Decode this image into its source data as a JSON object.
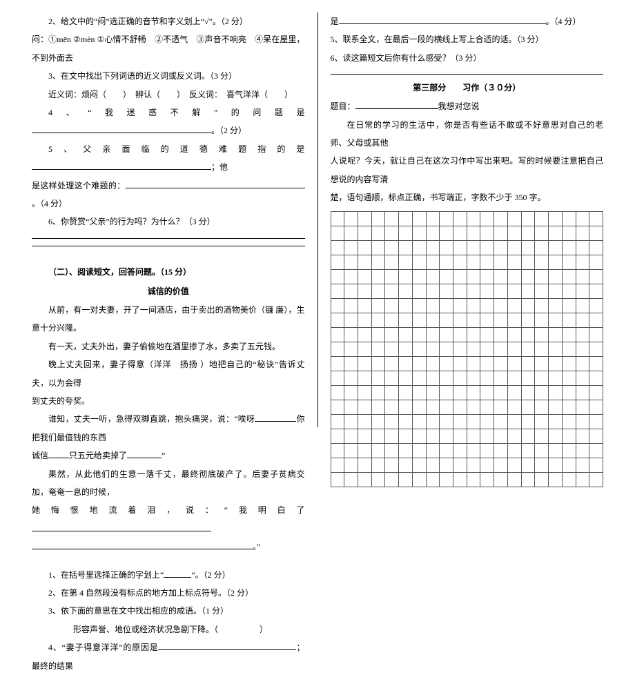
{
  "left": {
    "q2": "2、给文中的“闷”选正确的音节和字义划上“√”。（2 分）",
    "q2_line2": "闷：①mēn ②mèn ①心情不舒畅　②不透气　③声音不响亮　④呆在屋里，不到外面去",
    "q3": "3、在文中找出下列词语的近义词或反义词。（3 分）",
    "q3_b": "近义词：烦闷（　　）　辨认（　　）　反义词：　喜气洋洋（　　）",
    "q4": "4、“我迷惑不解”的问题是",
    "q4_end": "。（2 分）",
    "q5a": "5、父亲面临的道德难题指的是",
    "q5a_end": "；他",
    "q5b": "是这样处理这个难题的：",
    "q5b_end": "。（4 分）",
    "q6": "6、你赞赏“父亲”的行为吗？为什么？（3 分）",
    "section2": "（二）、阅读短文，回答问题。（15 分）",
    "title2": "诚信的价值",
    "p1": "从前，有一对夫妻，开了一间酒店，由于卖出的酒物美价（镰 廉），生意十分兴隆。",
    "p2": "有一天，丈夫外出，妻子偷偷地在酒里掺了水，多卖了五元钱。",
    "p3a": "晚上丈夫回来，妻子得意（洋洋　扬扬 ）地把自己的“秘诀”告诉丈夫，以为会得",
    "p3b": "到丈夫的夸奖。",
    "p4a": "谁知，丈夫一听，急得双脚直跳，抱头痛哭，说：“唉呀",
    "p4mid": "你把我们最值钱的东西",
    "p4b": "诚信",
    "p4c": "只五元给卖掉了",
    "p4d": "”",
    "p5a": "果然，从此他们的生意一落千丈，最终彻底破产了。后妻子贫病交加，奄奄一息的时候，",
    "p5b": "她悔恨地流着泪，说：“我明白了",
    "p5c": "。”",
    "sq1": "1、在括号里选择正确的字划上“",
    "sq1b": "”。（2 分）",
    "sq2": "2、在第 4 自然段没有标点的地方加上标点符号。（2 分）",
    "sq3": "3、依下面的意思在文中找出相应的成语。（1 分）",
    "sq3b": "形容声誉、地位或经济状况急剧下降。（　　　　　）",
    "sq4": "4、“妻子得意洋洋”的原因是",
    "sq4b": "；最终的结果"
  },
  "right": {
    "r4": "是",
    "r4_end": "。（4 分）",
    "r5": "5、联系全文，在最后一段的横线上写上合适的话。（3 分）",
    "r6": "6、读这篇短文后你有什么感受？（3 分）",
    "part3": "第三部分　　习作（３０分）",
    "topic_label": "题目：",
    "topic": "我想对您说",
    "intro1": "在日常的学习的生活中，你是否有些话不敢或不好意思对自己的老师、父母或其他",
    "intro2": "人说呢？今天，就让自己在这次习作中写出来吧。写的时候要注意把自己想说的内容写清",
    "intro3": "楚，语句通顺，标点正确，书写端正，字数不少于 350 字。"
  },
  "grid": {
    "rows": 19,
    "cols": 20
  },
  "colors": {
    "text": "#000000",
    "bg": "#ffffff",
    "grid": "#555555"
  }
}
